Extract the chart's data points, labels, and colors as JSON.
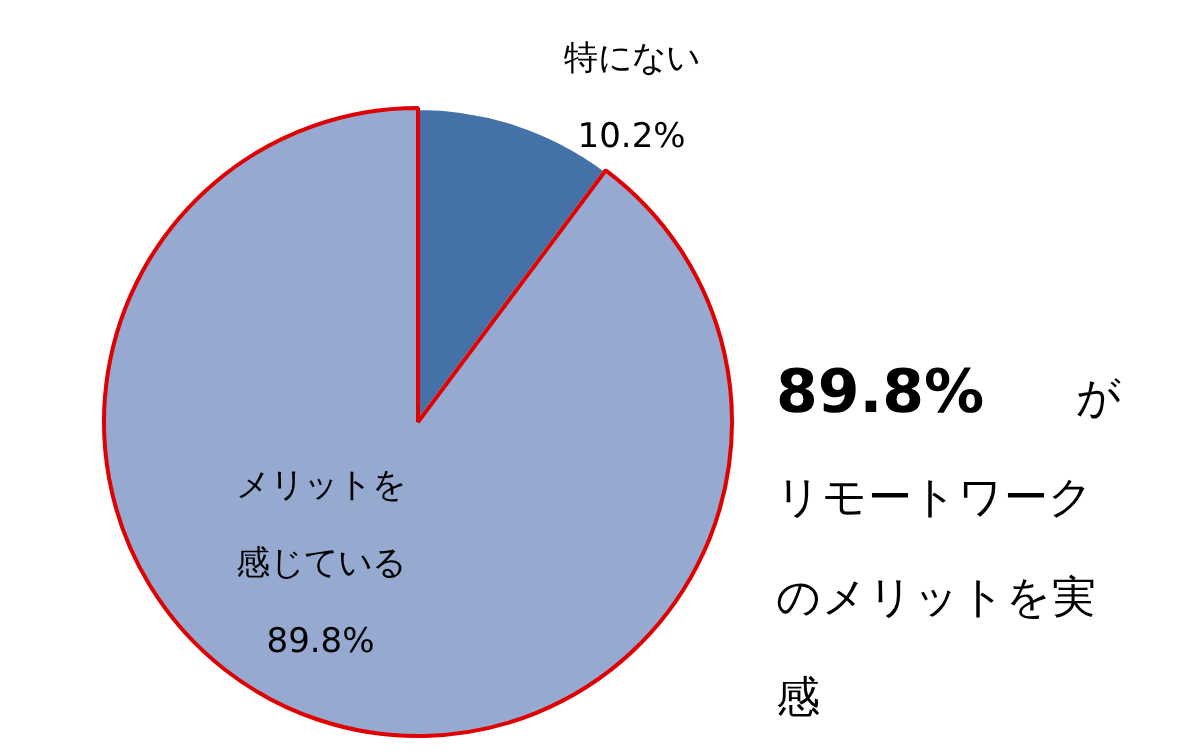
{
  "chart_data": {
    "type": "pie",
    "categories": [
      "特にない",
      "メリットを感じている"
    ],
    "values": [
      10.2,
      89.8
    ],
    "colors": [
      "#4472a8",
      "#95a9d1"
    ],
    "value_labels": [
      "10.2%",
      "89.8%"
    ],
    "legend": false,
    "annotations": [
      "89.8%がリモートワークのメリットを実感"
    ]
  }
}
